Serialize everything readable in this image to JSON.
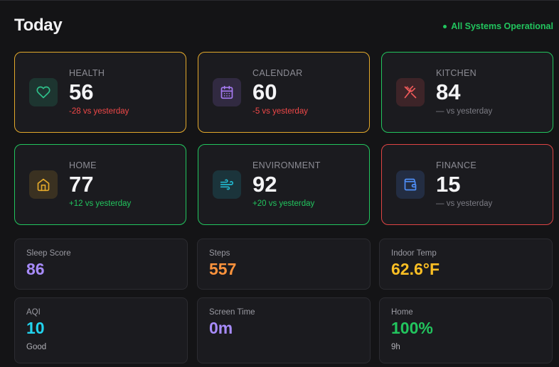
{
  "header": {
    "title": "Today",
    "status": "All Systems Operational"
  },
  "categories": [
    {
      "label": "HEALTH",
      "value": "56",
      "delta": "-28 vs yesterday",
      "icon": "heart-icon",
      "border": "#e3a92b",
      "accent": "#2ec08a"
    },
    {
      "label": "CALENDAR",
      "value": "60",
      "delta": "-5 vs yesterday",
      "icon": "calendar-icon",
      "border": "#e3a92b",
      "accent": "#a77bf3"
    },
    {
      "label": "KITCHEN",
      "value": "84",
      "delta": "— vs yesterday",
      "icon": "utensils-icon",
      "border": "#22c55e",
      "accent": "#f05a5a"
    },
    {
      "label": "HOME",
      "value": "77",
      "delta": "+12 vs yesterday",
      "icon": "house-icon",
      "border": "#22c55e",
      "accent": "#e3a92b"
    },
    {
      "label": "ENVIRONMENT",
      "value": "92",
      "delta": "+20 vs yesterday",
      "icon": "wind-icon",
      "border": "#22c55e",
      "accent": "#22b8cf"
    },
    {
      "label": "FINANCE",
      "value": "15",
      "delta": "— vs yesterday",
      "icon": "wallet-icon",
      "border": "#e04444",
      "accent": "#4f8ef7"
    }
  ],
  "metrics": [
    {
      "label": "Sleep Score",
      "value": "86",
      "color": "#a78bfa"
    },
    {
      "label": "Steps",
      "value": "557",
      "color": "#fb923c"
    },
    {
      "label": "Indoor Temp",
      "value": "62.6°F",
      "color": "#fbbf24"
    },
    {
      "label": "AQI",
      "value": "10",
      "sub": "Good",
      "color": "#22d3ee"
    },
    {
      "label": "Screen Time",
      "value": "0m",
      "color": "#a78bfa"
    },
    {
      "label": "Home",
      "value": "100%",
      "sub": "9h",
      "color": "#22c55e"
    }
  ]
}
